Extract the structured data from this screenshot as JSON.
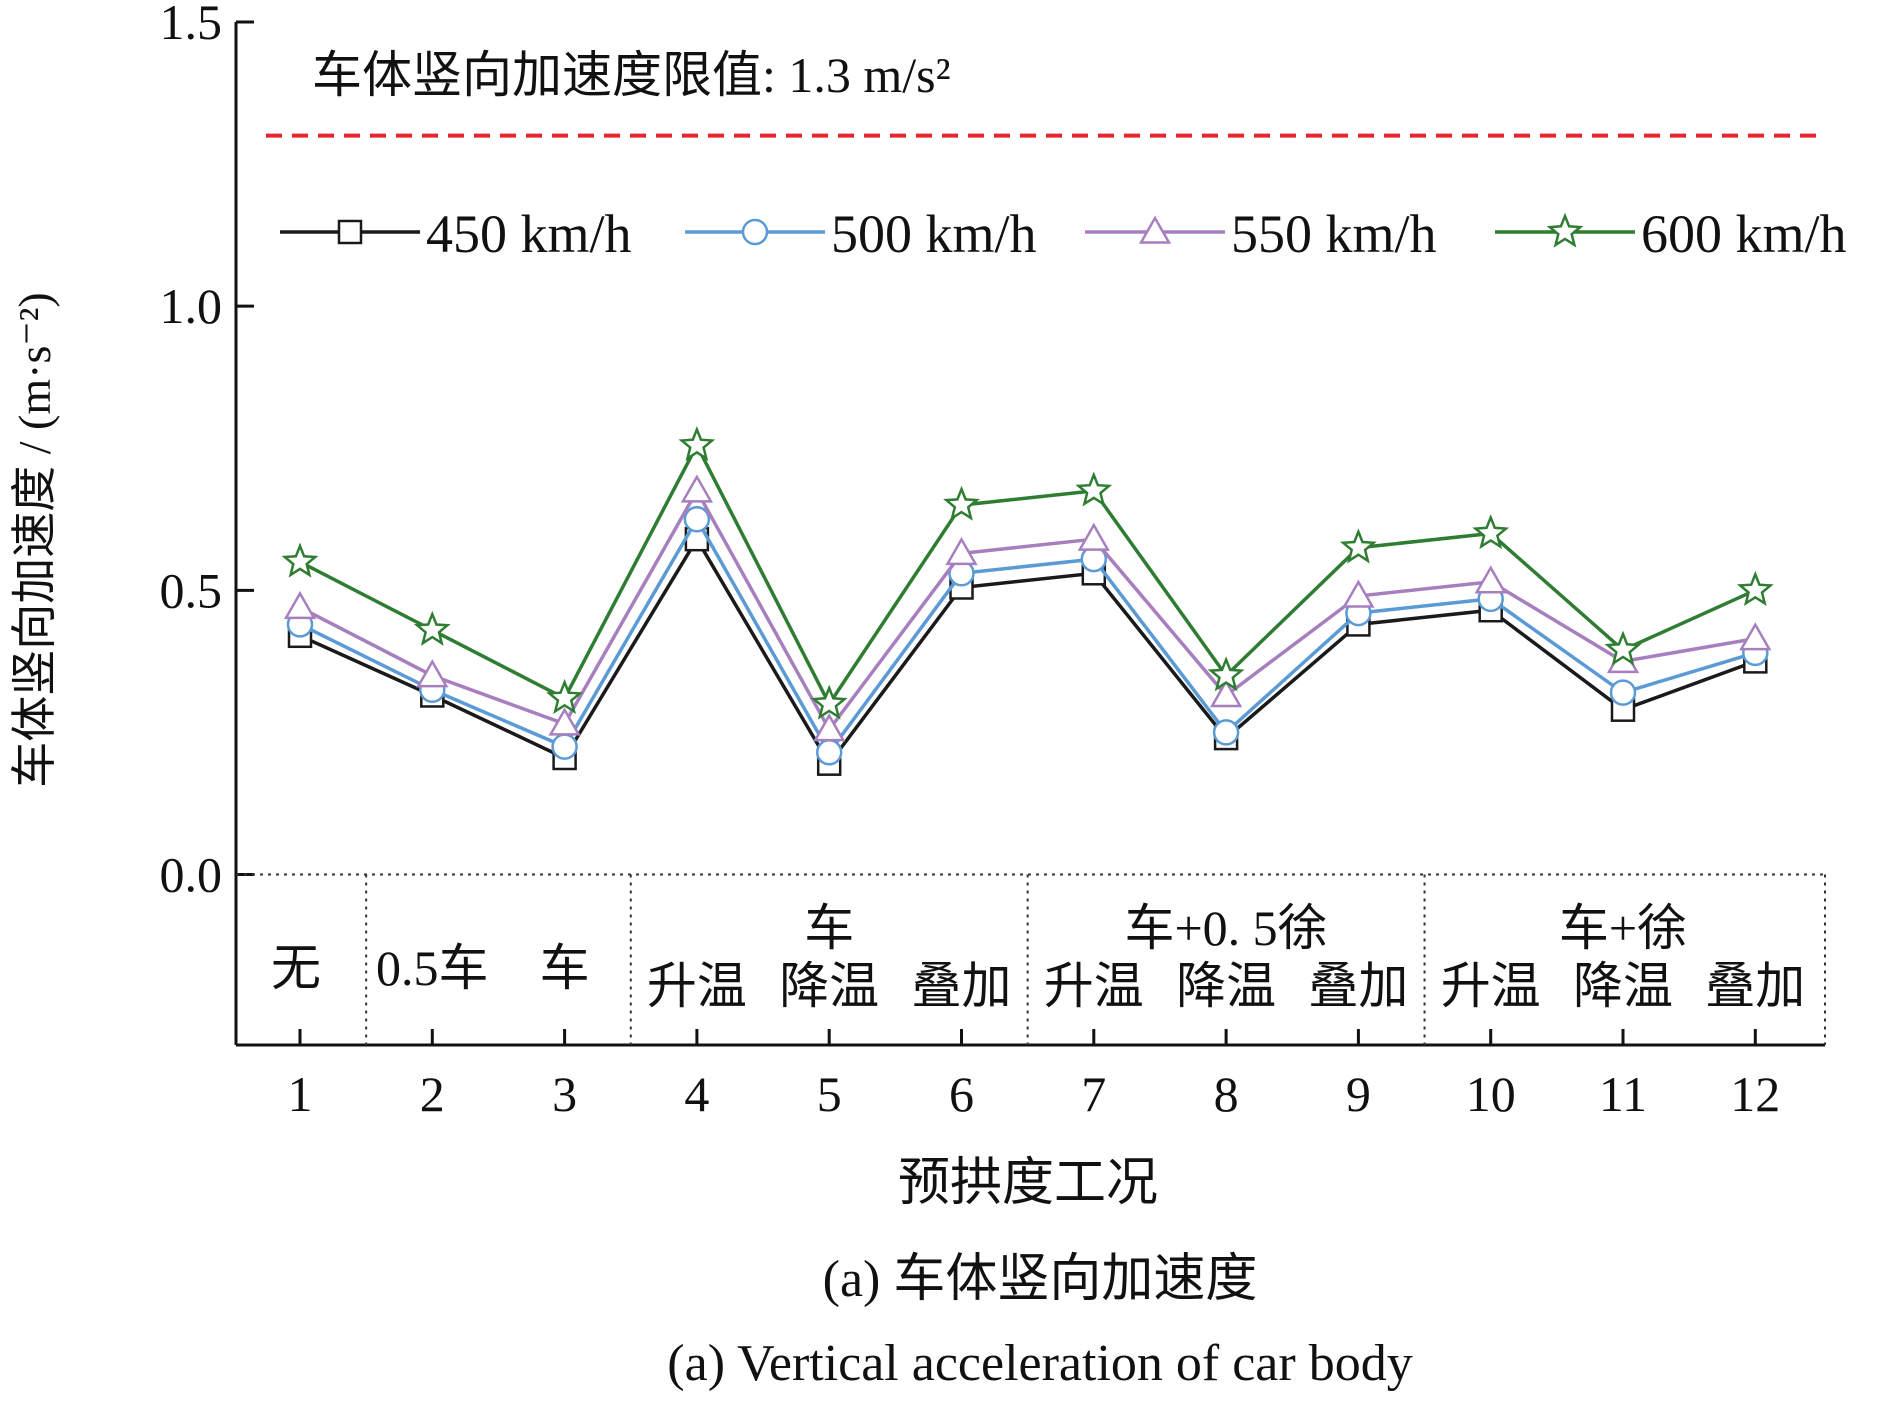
{
  "chart_data": {
    "type": "line",
    "ylabel": "车体竖向加速度 / (m·s⁻²)",
    "xlabel": "预拱度工况",
    "caption_cn": "(a) 车体竖向加速度",
    "caption_en": "(a) Vertical acceleration of car body",
    "ylim": [
      -0.3,
      1.5
    ],
    "yticks": [
      "0.0",
      "0.5",
      "1.0",
      "1.5"
    ],
    "ytick_values": [
      0.0,
      0.5,
      1.0,
      1.5
    ],
    "x": [
      1,
      2,
      3,
      4,
      5,
      6,
      7,
      8,
      9,
      10,
      11,
      12
    ],
    "xticks": [
      "1",
      "2",
      "3",
      "4",
      "5",
      "6",
      "7",
      "8",
      "9",
      "10",
      "11",
      "12"
    ],
    "limit": {
      "value": 1.3,
      "label": "车体竖向加速度限值: 1.3 m/s²",
      "color": "#e8252a"
    },
    "legend_position": "top",
    "series": [
      {
        "name": "450 km/h",
        "color": "#1a1a1a",
        "marker": "square",
        "values": [
          0.42,
          0.315,
          0.205,
          0.59,
          0.195,
          0.505,
          0.53,
          0.24,
          0.44,
          0.465,
          0.29,
          0.375
        ]
      },
      {
        "name": "500 km/h",
        "color": "#5b9bd5",
        "marker": "circle",
        "values": [
          0.44,
          0.325,
          0.225,
          0.625,
          0.215,
          0.53,
          0.555,
          0.25,
          0.46,
          0.485,
          0.32,
          0.39
        ]
      },
      {
        "name": "550 km/h",
        "color": "#a77fbf",
        "marker": "triangle",
        "values": [
          0.47,
          0.35,
          0.265,
          0.675,
          0.255,
          0.565,
          0.59,
          0.315,
          0.49,
          0.515,
          0.375,
          0.415
        ]
      },
      {
        "name": "600 km/h",
        "color": "#2e7d32",
        "marker": "star",
        "values": [
          0.55,
          0.43,
          0.31,
          0.755,
          0.3,
          0.65,
          0.675,
          0.35,
          0.575,
          0.6,
          0.395,
          0.5
        ]
      }
    ],
    "condition_groups": [
      {
        "top": "",
        "labels": [
          "无"
        ],
        "from": 1,
        "to": 1
      },
      {
        "top": "",
        "labels": [
          "0.5车",
          "车"
        ],
        "from": 2,
        "to": 3
      },
      {
        "top": "车",
        "labels": [
          "升温",
          "降温",
          "叠加"
        ],
        "from": 4,
        "to": 6
      },
      {
        "top": "车+0. 5徐",
        "labels": [
          "升温",
          "降温",
          "叠加"
        ],
        "from": 7,
        "to": 9
      },
      {
        "top": "车+徐",
        "labels": [
          "升温",
          "降温",
          "叠加"
        ],
        "from": 10,
        "to": 12
      }
    ]
  }
}
